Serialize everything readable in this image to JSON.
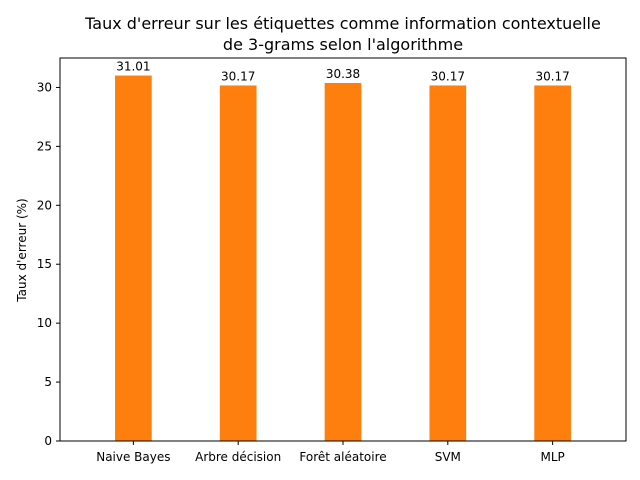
{
  "chart_data": {
    "type": "bar",
    "title_lines": [
      "Taux d'erreur sur les étiquettes comme information contextuelle",
      "de 3-grams selon l'algorithme"
    ],
    "xlabel": "",
    "ylabel": "Taux d'erreur (%)",
    "categories": [
      "Naive Bayes",
      "Arbre décision",
      "Forêt aléatoire",
      "SVM",
      "MLP"
    ],
    "values": [
      31.01,
      30.17,
      30.38,
      30.17,
      30.17
    ],
    "value_labels": [
      "31.01",
      "30.17",
      "30.38",
      "30.17",
      "30.17"
    ],
    "ylim": [
      0,
      32.5
    ],
    "yticks": [
      0,
      5,
      10,
      15,
      20,
      25,
      30
    ],
    "bar_color": "#ff7f0e",
    "grid": false,
    "legend": "none"
  }
}
